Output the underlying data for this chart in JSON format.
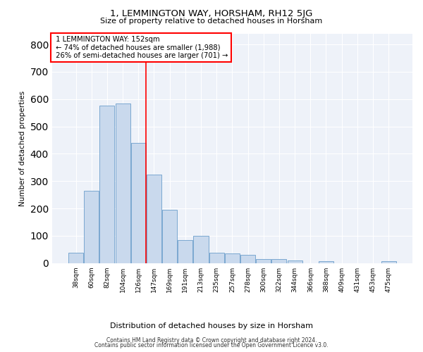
{
  "title": "1, LEMMINGTON WAY, HORSHAM, RH12 5JG",
  "subtitle": "Size of property relative to detached houses in Horsham",
  "xlabel": "Distribution of detached houses by size in Horsham",
  "ylabel": "Number of detached properties",
  "bar_labels": [
    "38sqm",
    "60sqm",
    "82sqm",
    "104sqm",
    "126sqm",
    "147sqm",
    "169sqm",
    "191sqm",
    "213sqm",
    "235sqm",
    "257sqm",
    "278sqm",
    "300sqm",
    "322sqm",
    "344sqm",
    "366sqm",
    "388sqm",
    "409sqm",
    "431sqm",
    "453sqm",
    "475sqm"
  ],
  "bar_values": [
    38,
    265,
    575,
    585,
    440,
    325,
    195,
    85,
    100,
    38,
    35,
    30,
    14,
    15,
    10,
    0,
    8,
    0,
    0,
    0,
    8
  ],
  "bar_color": "#c9d9ed",
  "bar_edgecolor": "#7ba8d0",
  "property_label": "1 LEMMINGTON WAY: 152sqm",
  "annotation_line1": "← 74% of detached houses are smaller (1,988)",
  "annotation_line2": "26% of semi-detached houses are larger (701) →",
  "vline_x": 4.5,
  "ylim": [
    0,
    840
  ],
  "yticks": [
    0,
    100,
    200,
    300,
    400,
    500,
    600,
    700,
    800
  ],
  "bg_color": "#eef2f9",
  "grid_color": "#ffffff",
  "footer_line1": "Contains HM Land Registry data © Crown copyright and database right 2024.",
  "footer_line2": "Contains public sector information licensed under the Open Government Licence v3.0."
}
